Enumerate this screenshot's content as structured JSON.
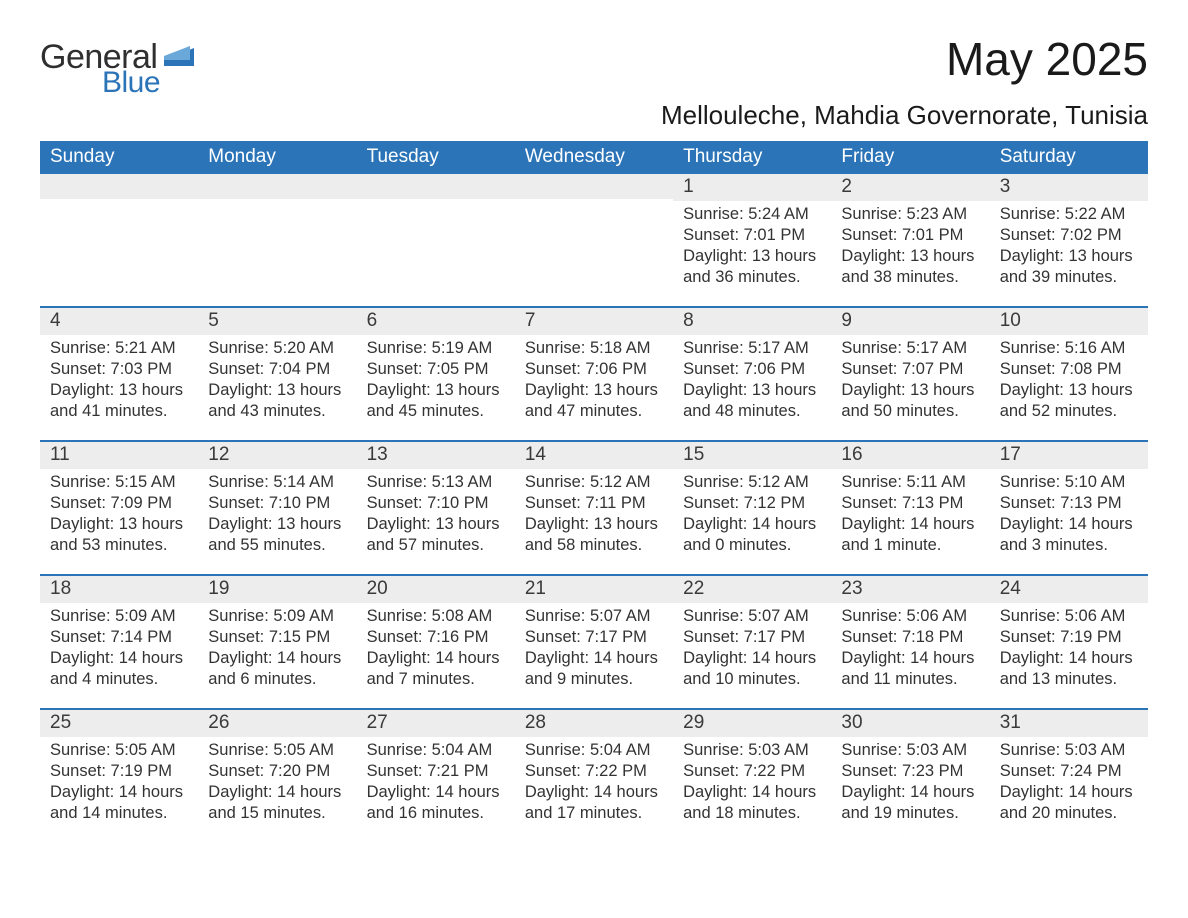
{
  "brand": {
    "general": "General",
    "blue": "Blue"
  },
  "colors": {
    "accent": "#2b74b8",
    "header_text": "#ffffff",
    "daynum_bg": "#ededed",
    "text": "#333333",
    "bg": "#ffffff"
  },
  "title": "May 2025",
  "location": "Mellouleche, Mahdia Governorate, Tunisia",
  "weekdays": [
    "Sunday",
    "Monday",
    "Tuesday",
    "Wednesday",
    "Thursday",
    "Friday",
    "Saturday"
  ],
  "weeks": [
    [
      {
        "empty": true
      },
      {
        "empty": true
      },
      {
        "empty": true
      },
      {
        "empty": true
      },
      {
        "num": "1",
        "sunrise": "5:24 AM",
        "sunset": "7:01 PM",
        "daylight": "13 hours and 36 minutes."
      },
      {
        "num": "2",
        "sunrise": "5:23 AM",
        "sunset": "7:01 PM",
        "daylight": "13 hours and 38 minutes."
      },
      {
        "num": "3",
        "sunrise": "5:22 AM",
        "sunset": "7:02 PM",
        "daylight": "13 hours and 39 minutes."
      }
    ],
    [
      {
        "num": "4",
        "sunrise": "5:21 AM",
        "sunset": "7:03 PM",
        "daylight": "13 hours and 41 minutes."
      },
      {
        "num": "5",
        "sunrise": "5:20 AM",
        "sunset": "7:04 PM",
        "daylight": "13 hours and 43 minutes."
      },
      {
        "num": "6",
        "sunrise": "5:19 AM",
        "sunset": "7:05 PM",
        "daylight": "13 hours and 45 minutes."
      },
      {
        "num": "7",
        "sunrise": "5:18 AM",
        "sunset": "7:06 PM",
        "daylight": "13 hours and 47 minutes."
      },
      {
        "num": "8",
        "sunrise": "5:17 AM",
        "sunset": "7:06 PM",
        "daylight": "13 hours and 48 minutes."
      },
      {
        "num": "9",
        "sunrise": "5:17 AM",
        "sunset": "7:07 PM",
        "daylight": "13 hours and 50 minutes."
      },
      {
        "num": "10",
        "sunrise": "5:16 AM",
        "sunset": "7:08 PM",
        "daylight": "13 hours and 52 minutes."
      }
    ],
    [
      {
        "num": "11",
        "sunrise": "5:15 AM",
        "sunset": "7:09 PM",
        "daylight": "13 hours and 53 minutes."
      },
      {
        "num": "12",
        "sunrise": "5:14 AM",
        "sunset": "7:10 PM",
        "daylight": "13 hours and 55 minutes."
      },
      {
        "num": "13",
        "sunrise": "5:13 AM",
        "sunset": "7:10 PM",
        "daylight": "13 hours and 57 minutes."
      },
      {
        "num": "14",
        "sunrise": "5:12 AM",
        "sunset": "7:11 PM",
        "daylight": "13 hours and 58 minutes."
      },
      {
        "num": "15",
        "sunrise": "5:12 AM",
        "sunset": "7:12 PM",
        "daylight": "14 hours and 0 minutes."
      },
      {
        "num": "16",
        "sunrise": "5:11 AM",
        "sunset": "7:13 PM",
        "daylight": "14 hours and 1 minute."
      },
      {
        "num": "17",
        "sunrise": "5:10 AM",
        "sunset": "7:13 PM",
        "daylight": "14 hours and 3 minutes."
      }
    ],
    [
      {
        "num": "18",
        "sunrise": "5:09 AM",
        "sunset": "7:14 PM",
        "daylight": "14 hours and 4 minutes."
      },
      {
        "num": "19",
        "sunrise": "5:09 AM",
        "sunset": "7:15 PM",
        "daylight": "14 hours and 6 minutes."
      },
      {
        "num": "20",
        "sunrise": "5:08 AM",
        "sunset": "7:16 PM",
        "daylight": "14 hours and 7 minutes."
      },
      {
        "num": "21",
        "sunrise": "5:07 AM",
        "sunset": "7:17 PM",
        "daylight": "14 hours and 9 minutes."
      },
      {
        "num": "22",
        "sunrise": "5:07 AM",
        "sunset": "7:17 PM",
        "daylight": "14 hours and 10 minutes."
      },
      {
        "num": "23",
        "sunrise": "5:06 AM",
        "sunset": "7:18 PM",
        "daylight": "14 hours and 11 minutes."
      },
      {
        "num": "24",
        "sunrise": "5:06 AM",
        "sunset": "7:19 PM",
        "daylight": "14 hours and 13 minutes."
      }
    ],
    [
      {
        "num": "25",
        "sunrise": "5:05 AM",
        "sunset": "7:19 PM",
        "daylight": "14 hours and 14 minutes."
      },
      {
        "num": "26",
        "sunrise": "5:05 AM",
        "sunset": "7:20 PM",
        "daylight": "14 hours and 15 minutes."
      },
      {
        "num": "27",
        "sunrise": "5:04 AM",
        "sunset": "7:21 PM",
        "daylight": "14 hours and 16 minutes."
      },
      {
        "num": "28",
        "sunrise": "5:04 AM",
        "sunset": "7:22 PM",
        "daylight": "14 hours and 17 minutes."
      },
      {
        "num": "29",
        "sunrise": "5:03 AM",
        "sunset": "7:22 PM",
        "daylight": "14 hours and 18 minutes."
      },
      {
        "num": "30",
        "sunrise": "5:03 AM",
        "sunset": "7:23 PM",
        "daylight": "14 hours and 19 minutes."
      },
      {
        "num": "31",
        "sunrise": "5:03 AM",
        "sunset": "7:24 PM",
        "daylight": "14 hours and 20 minutes."
      }
    ]
  ],
  "labels": {
    "sunrise_prefix": "Sunrise: ",
    "sunset_prefix": "Sunset: ",
    "daylight_prefix": "Daylight: "
  }
}
